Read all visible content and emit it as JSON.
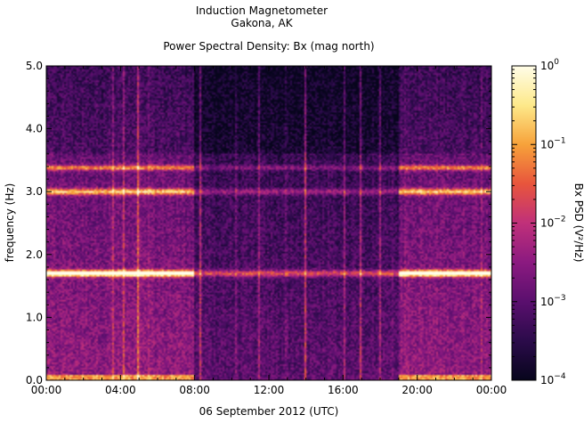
{
  "chart_data": {
    "type": "heatmap",
    "title": "Induction Magnetometer",
    "subtitle": "Gakona, AK",
    "plot_title": "Power Spectral Density: Bx (mag north)",
    "xlabel": "06 September 2012 (UTC)",
    "ylabel": "frequency (Hz)",
    "x_ticks": [
      "00:00",
      "04:00",
      "08:00",
      "12:00",
      "16:00",
      "20:00",
      "00:00"
    ],
    "y_ticks": [
      "0.0",
      "1.0",
      "2.0",
      "3.0",
      "4.0",
      "5.0"
    ],
    "xlim_hours": [
      0,
      24
    ],
    "ylim": [
      0,
      5
    ],
    "colorbar": {
      "label": "Bx PSD (V²/Hz)",
      "scale": "log",
      "range": [
        0.0001,
        1
      ],
      "ticks": [
        {
          "value": 1,
          "base": "10",
          "exp": "0"
        },
        {
          "value": 0.1,
          "base": "10",
          "exp": "−1"
        },
        {
          "value": 0.01,
          "base": "10",
          "exp": "−2"
        },
        {
          "value": 0.001,
          "base": "10",
          "exp": "−3"
        },
        {
          "value": 0.0001,
          "base": "10",
          "exp": "−4"
        }
      ],
      "colors": [
        "#07051c",
        "#2b0b4a",
        "#5a0f6e",
        "#8b1a80",
        "#c0307a",
        "#e8553c",
        "#f7a23a",
        "#fde98a",
        "#fffde8"
      ]
    },
    "spectral_bands_hz": [
      {
        "freq": 1.7,
        "level": 0.85,
        "width": 0.05
      },
      {
        "freq": 3.0,
        "level": 0.55,
        "width": 0.05
      },
      {
        "freq": 3.38,
        "level": 0.45,
        "width": 0.04
      }
    ],
    "quiet_interval_hours": [
      8,
      19
    ]
  }
}
